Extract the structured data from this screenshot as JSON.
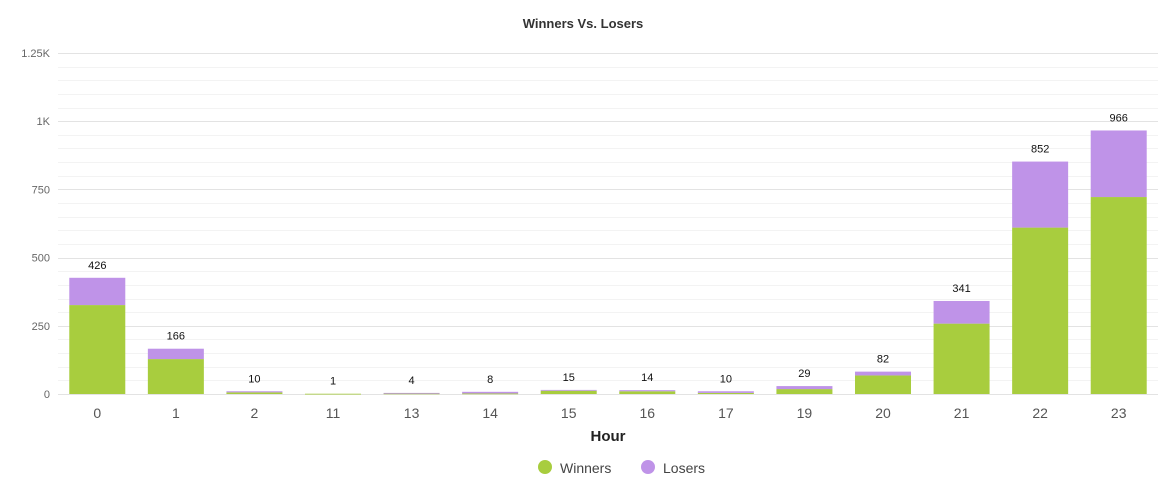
{
  "chart_data": {
    "type": "bar",
    "stacked": true,
    "title": "Winners Vs. Losers",
    "xlabel": "Hour",
    "ylabel": "",
    "categories": [
      "0",
      "1",
      "2",
      "11",
      "13",
      "14",
      "15",
      "16",
      "17",
      "19",
      "20",
      "21",
      "22",
      "23"
    ],
    "series": [
      {
        "name": "Winners",
        "color": "#a8cd3e",
        "values": [
          326,
          128,
          6,
          1,
          2,
          2,
          12,
          10,
          4,
          18,
          68,
          258,
          610,
          722
        ]
      },
      {
        "name": "Losers",
        "color": "#bf93e8",
        "values": [
          100,
          38,
          4,
          0,
          2,
          6,
          3,
          4,
          6,
          11,
          14,
          83,
          242,
          244
        ]
      }
    ],
    "totals": [
      426,
      166,
      10,
      1,
      4,
      8,
      15,
      14,
      10,
      29,
      82,
      341,
      852,
      966
    ],
    "ylim": [
      0,
      1250
    ],
    "y_ticks": [
      {
        "value": 0,
        "label": "0"
      },
      {
        "value": 250,
        "label": "250"
      },
      {
        "value": 500,
        "label": "500"
      },
      {
        "value": 750,
        "label": "750"
      },
      {
        "value": 1000,
        "label": "1K"
      },
      {
        "value": 1250,
        "label": "1.25K"
      }
    ],
    "grid": true,
    "legend_position": "bottom-center"
  }
}
